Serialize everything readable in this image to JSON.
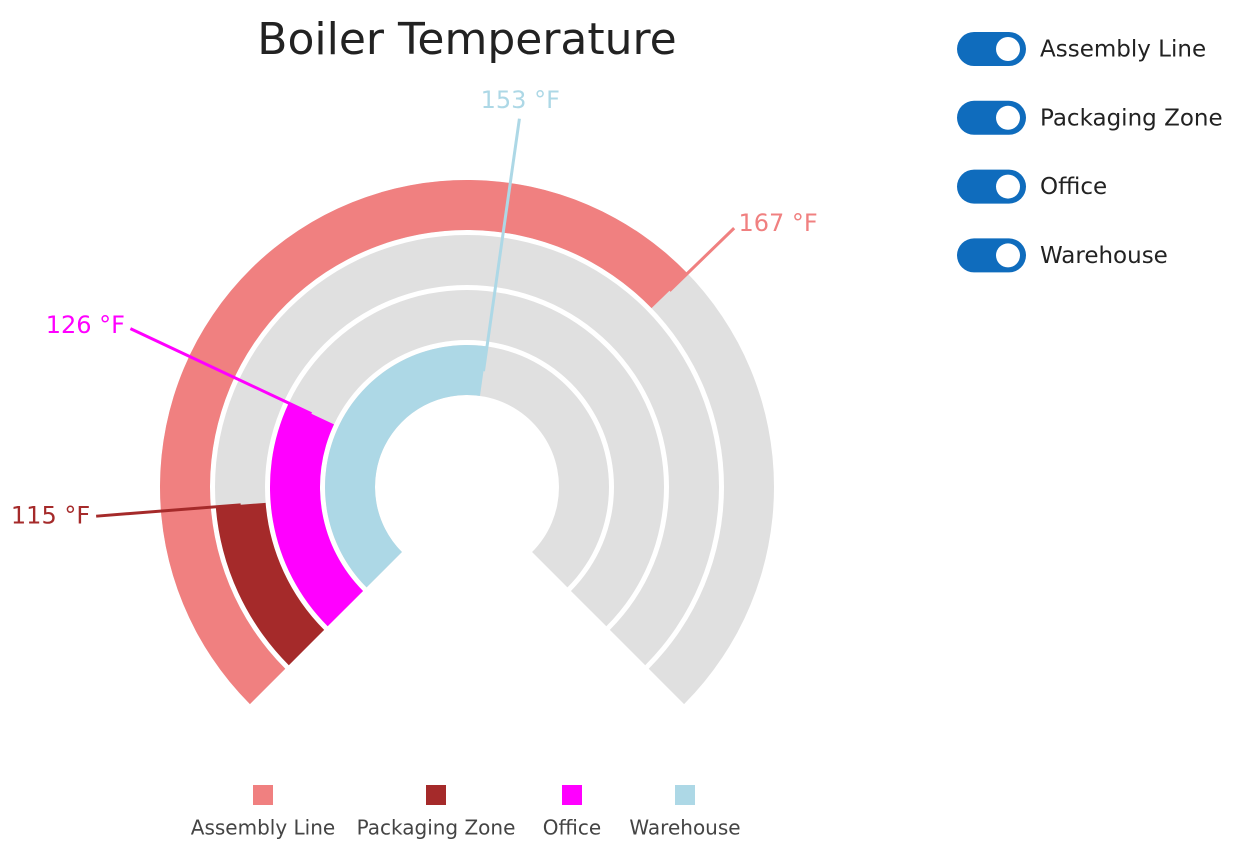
{
  "chart_data": {
    "type": "radial-bar",
    "title": "Boiler Temperature",
    "ylim": [
      100,
      200
    ],
    "track_color": "#e0e0e0",
    "series": [
      {
        "name": "Assembly Line",
        "color": "#f08080",
        "values": [
          167
        ],
        "value_labels": [
          "167 °F"
        ]
      },
      {
        "name": "Packaging Zone",
        "color": "#a52a2a",
        "values": [
          115
        ],
        "value_labels": [
          "115 °F"
        ]
      },
      {
        "name": "Office",
        "color": "#ff00ff",
        "values": [
          126
        ],
        "value_labels": [
          "126 °F"
        ]
      },
      {
        "name": "Warehouse",
        "color": "#add8e6",
        "values": [
          153
        ],
        "value_labels": [
          "153 °F"
        ]
      }
    ],
    "legend": "bottom",
    "toggles": "right",
    "toggle_color": "#0f6cbd"
  }
}
